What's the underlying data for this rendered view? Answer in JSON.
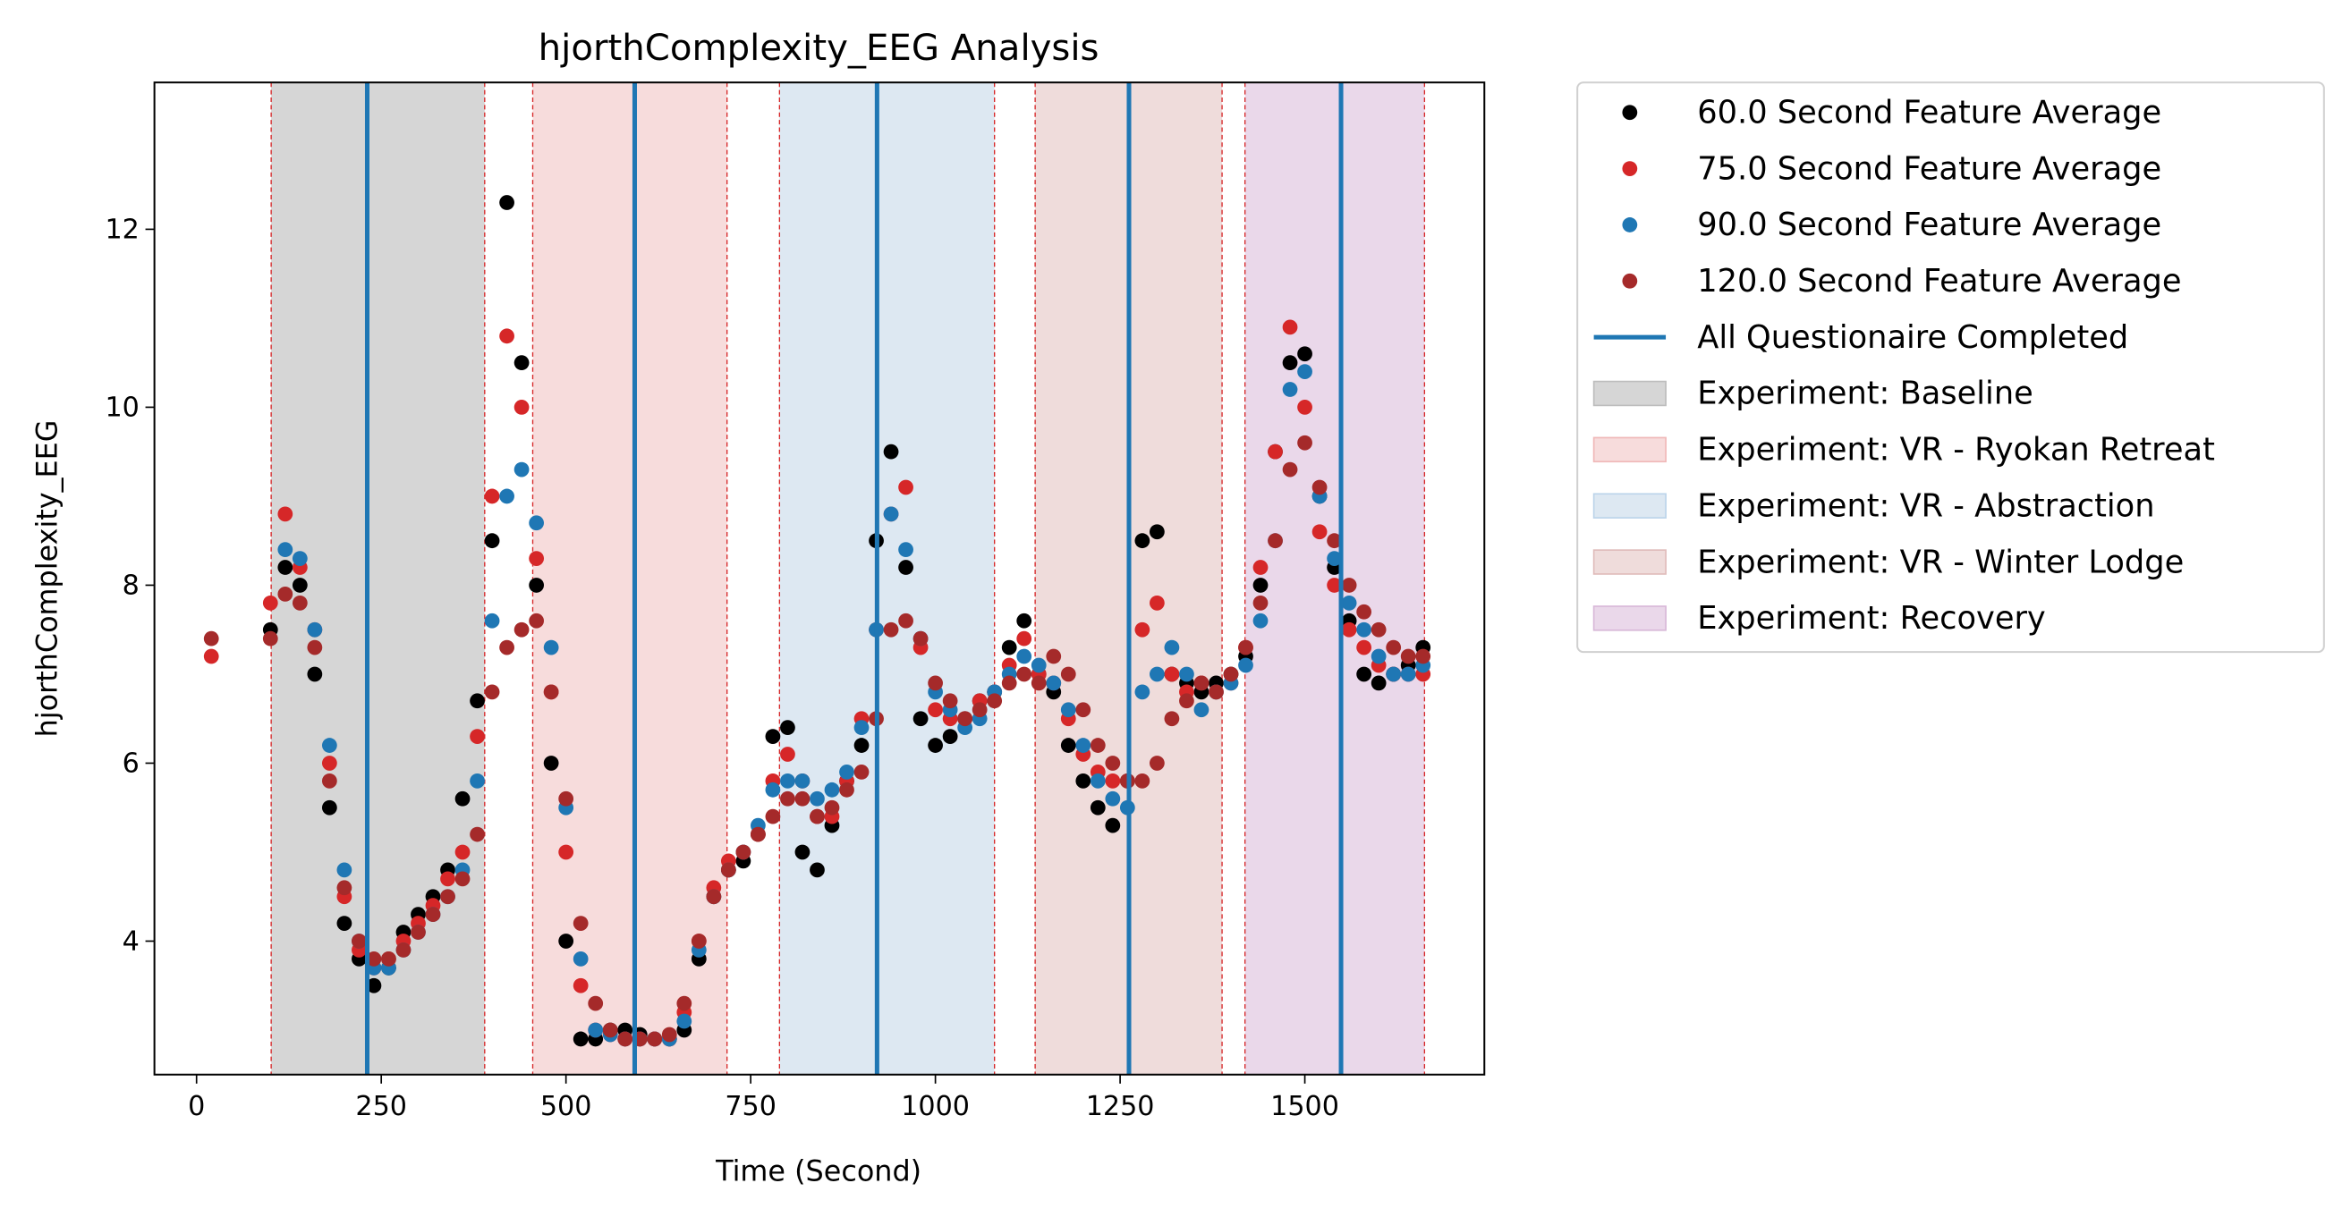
{
  "chart_data": {
    "type": "scatter",
    "title": "hjorthComplexity_EEG Analysis",
    "xlabel": "Time (Second)",
    "ylabel": "hjorthComplexity_EEG",
    "xlim": [
      -57,
      1743
    ],
    "ylim": [
      2.5,
      13.65
    ],
    "xticks": [
      0,
      250,
      500,
      750,
      1000,
      1250,
      1500
    ],
    "yticks": [
      4,
      6,
      8,
      10,
      12
    ],
    "grid": false,
    "legend": "outside-upper-right",
    "x": [
      20,
      100,
      120,
      140,
      160,
      180,
      200,
      220,
      240,
      260,
      280,
      300,
      320,
      340,
      360,
      380,
      400,
      420,
      440,
      460,
      480,
      500,
      520,
      540,
      560,
      580,
      600,
      620,
      640,
      660,
      680,
      700,
      720,
      740,
      760,
      780,
      800,
      820,
      840,
      860,
      880,
      900,
      920,
      940,
      960,
      980,
      1000,
      1020,
      1040,
      1060,
      1080,
      1100,
      1120,
      1140,
      1160,
      1180,
      1200,
      1220,
      1240,
      1260,
      1280,
      1300,
      1320,
      1340,
      1360,
      1380,
      1400,
      1420,
      1440,
      1460,
      1480,
      1500,
      1520,
      1540,
      1560,
      1580,
      1600,
      1620,
      1640,
      1660
    ],
    "series": [
      {
        "name": "60.0 Second Feature Average",
        "color": "#000000",
        "values": [
          null,
          7.5,
          8.2,
          8.0,
          7.0,
          5.5,
          4.2,
          3.8,
          3.5,
          3.7,
          4.1,
          4.3,
          4.5,
          4.8,
          5.6,
          6.7,
          8.5,
          12.3,
          10.5,
          8.0,
          6.0,
          4.0,
          2.9,
          2.9,
          3.0,
          3.0,
          2.95,
          2.9,
          2.9,
          3.0,
          3.8,
          4.5,
          4.8,
          4.9,
          5.2,
          6.3,
          6.4,
          5.0,
          4.8,
          5.3,
          5.8,
          6.2,
          8.5,
          9.5,
          8.2,
          6.5,
          6.2,
          6.3,
          6.5,
          6.7,
          6.8,
          7.3,
          7.6,
          7.0,
          6.8,
          6.2,
          5.8,
          5.5,
          5.3,
          5.8,
          8.5,
          8.6,
          7.0,
          6.9,
          6.8,
          6.9,
          7.0,
          7.2,
          8.0,
          9.5,
          10.5,
          10.6,
          9.0,
          8.2,
          7.6,
          7.0,
          6.9,
          7.0,
          7.1,
          7.3
        ]
      },
      {
        "name": "75.0 Second Feature Average",
        "color": "#d62728",
        "values": [
          7.2,
          7.8,
          8.8,
          8.2,
          7.5,
          6.0,
          4.5,
          3.9,
          3.7,
          3.8,
          4.0,
          4.2,
          4.4,
          4.7,
          5.0,
          6.3,
          9.0,
          10.8,
          10.0,
          8.3,
          6.8,
          5.0,
          3.5,
          3.0,
          2.95,
          2.9,
          2.9,
          2.9,
          2.9,
          3.2,
          4.0,
          4.6,
          4.9,
          5.0,
          5.2,
          5.8,
          6.1,
          5.8,
          5.4,
          5.4,
          5.8,
          6.5,
          7.5,
          8.8,
          9.1,
          7.3,
          6.6,
          6.5,
          6.5,
          6.7,
          6.8,
          7.1,
          7.4,
          7.0,
          6.9,
          6.5,
          6.1,
          5.9,
          5.8,
          5.8,
          7.5,
          7.8,
          7.0,
          6.8,
          6.9,
          6.8,
          6.9,
          7.3,
          8.2,
          9.5,
          10.9,
          10.0,
          8.6,
          8.0,
          7.5,
          7.3,
          7.1,
          7.0,
          7.0,
          7.0
        ]
      },
      {
        "name": "90.0 Second Feature Average",
        "color": "#1f77b4",
        "values": [
          null,
          null,
          8.4,
          8.3,
          7.5,
          6.2,
          4.8,
          4.0,
          3.7,
          3.7,
          3.9,
          4.1,
          4.3,
          4.5,
          4.8,
          5.8,
          7.6,
          9.0,
          9.3,
          8.7,
          7.3,
          5.5,
          3.8,
          3.0,
          2.95,
          2.9,
          2.9,
          2.9,
          2.9,
          3.1,
          3.9,
          4.5,
          4.8,
          5.0,
          5.3,
          5.7,
          5.8,
          5.8,
          5.6,
          5.7,
          5.9,
          6.4,
          7.5,
          8.8,
          8.4,
          7.4,
          6.8,
          6.6,
          6.4,
          6.5,
          6.8,
          7.0,
          7.2,
          7.1,
          6.9,
          6.6,
          6.2,
          5.8,
          5.6,
          5.5,
          6.8,
          7.0,
          7.3,
          7.0,
          6.6,
          6.8,
          6.9,
          7.1,
          7.6,
          8.5,
          10.2,
          10.4,
          9.0,
          8.3,
          7.8,
          7.5,
          7.2,
          7.0,
          7.0,
          7.1
        ]
      },
      {
        "name": "120.0 Second Feature Average",
        "color": "#a52a2a",
        "values": [
          7.4,
          7.4,
          7.9,
          7.8,
          7.3,
          5.8,
          4.6,
          4.0,
          3.8,
          3.8,
          3.9,
          4.1,
          4.3,
          4.5,
          4.7,
          5.2,
          6.8,
          7.3,
          7.5,
          7.6,
          6.8,
          5.6,
          4.2,
          3.3,
          3.0,
          2.9,
          2.9,
          2.9,
          2.95,
          3.3,
          4.0,
          4.5,
          4.8,
          5.0,
          5.2,
          5.4,
          5.6,
          5.6,
          5.4,
          5.5,
          5.7,
          5.9,
          6.5,
          7.5,
          7.6,
          7.4,
          6.9,
          6.7,
          6.5,
          6.6,
          6.7,
          6.9,
          7.0,
          6.9,
          7.2,
          7.0,
          6.6,
          6.2,
          6.0,
          5.8,
          5.8,
          6.0,
          6.5,
          6.7,
          6.9,
          6.8,
          7.0,
          7.3,
          7.8,
          8.5,
          9.3,
          9.6,
          9.1,
          8.5,
          8.0,
          7.7,
          7.5,
          7.3,
          7.2,
          7.2
        ]
      }
    ],
    "vlines": {
      "name": "All Questionaire Completed",
      "color": "#1f77b4",
      "x": [
        231,
        593,
        921,
        1262,
        1549
      ]
    },
    "boundary_color": "#d62728",
    "spans": [
      {
        "name": "Experiment: Baseline",
        "start": 101,
        "end": 390,
        "color": "#d6d6d6",
        "edge": "#bdbdbd"
      },
      {
        "name": "Experiment: VR - Ryokan Retreat",
        "start": 455,
        "end": 718,
        "color": "#f7dcdc",
        "edge": "#f0b8b8"
      },
      {
        "name": "Experiment: VR - Abstraction",
        "start": 789,
        "end": 1080,
        "color": "#dde8f2",
        "edge": "#bcd4ea"
      },
      {
        "name": "Experiment: VR - Winter Lodge",
        "start": 1135,
        "end": 1388,
        "color": "#efdcdb",
        "edge": "#e0bcbb"
      },
      {
        "name": "Experiment: Recovery",
        "start": 1419,
        "end": 1662,
        "color": "#ead8ea",
        "edge": "#d8b8d8"
      }
    ]
  }
}
